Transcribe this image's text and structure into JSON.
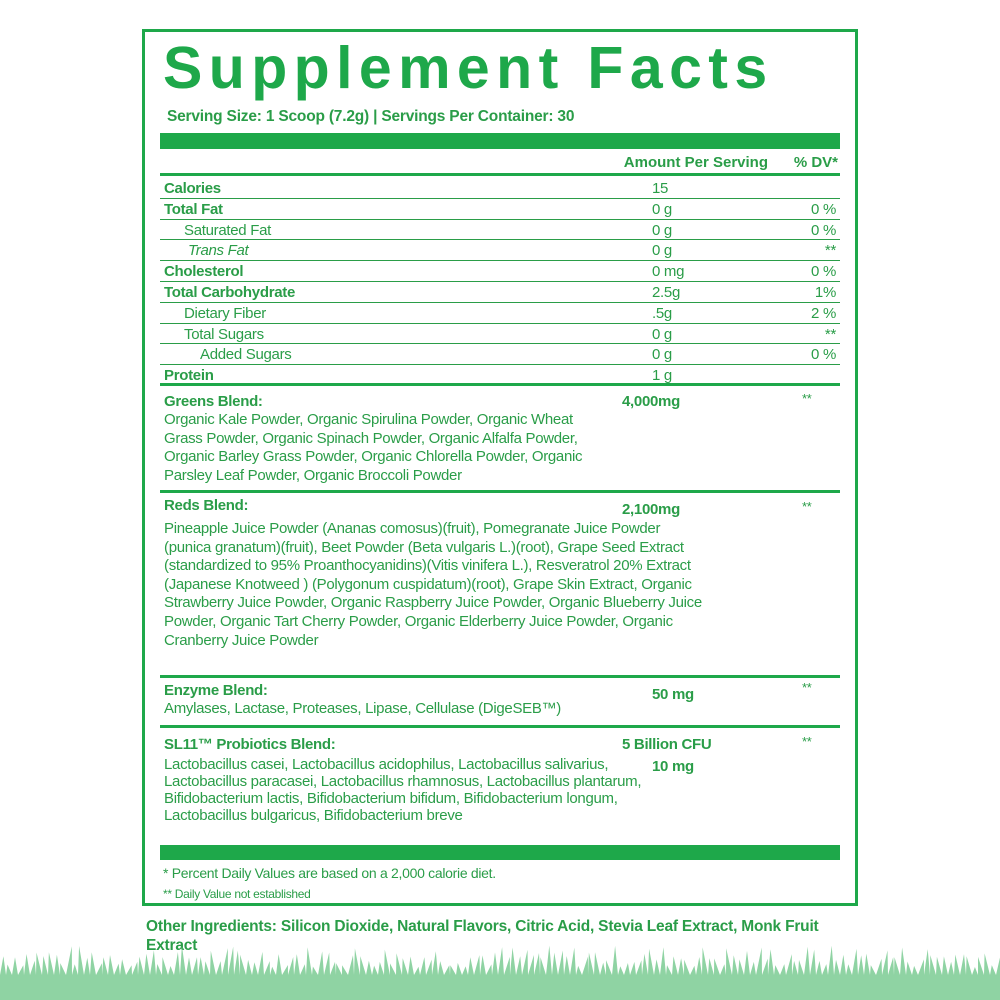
{
  "title": "Supplement Facts",
  "serving": "Serving Size: 1 Scoop (7.2g) | Servings Per Container: 30",
  "header": {
    "amount": "Amount Per Serving",
    "dv": "% DV*"
  },
  "nutrients": [
    {
      "name": "Calories",
      "amount": "15",
      "dv": ""
    },
    {
      "name": "Total Fat",
      "amount": "0 g",
      "dv": "0 %"
    },
    {
      "name": "Saturated Fat",
      "amount": "0 g",
      "dv": "0 %"
    },
    {
      "name": "Trans Fat",
      "amount": "0 g",
      "dv": "**"
    },
    {
      "name": "Cholesterol",
      "amount": "0 mg",
      "dv": "0 %"
    },
    {
      "name": "Total Carbohydrate",
      "amount": "2.5g",
      "dv": "1%"
    },
    {
      "name": "Dietary Fiber",
      "amount": ".5g",
      "dv": "2 %"
    },
    {
      "name": "Total Sugars",
      "amount": "0 g",
      "dv": "**"
    },
    {
      "name": "Added Sugars",
      "amount": "0 g",
      "dv": "0 %"
    },
    {
      "name": "Protein",
      "amount": "1 g",
      "dv": ""
    }
  ],
  "blends": [
    {
      "name": "Greens Blend:",
      "amount": "4,000mg",
      "dv": "**",
      "ingredients": "Organic Kale Powder, Organic Spirulina Powder, Organic Wheat Grass Powder, Organic Spinach Powder, Organic Alfalfa Powder, Organic Barley Grass Powder, Organic Chlorella Powder, Organic Parsley Leaf Powder, Organic Broccoli Powder"
    },
    {
      "name": "Reds Blend:",
      "amount": "2,100mg",
      "dv": "**",
      "ingredients": "Pineapple Juice Powder (Ananas comosus)(fruit), Pomegranate Juice Powder (punica granatum)(fruit), Beet Powder (Beta vulgaris L.)(root), Grape Seed Extract (standardized to 95% Proanthocyanidins)(Vitis vinifera L.), Resveratrol 20% Extract (Japanese Knotweed ) (Polygonum cuspidatum)(root), Grape Skin Extract, Organic Strawberry Juice Powder, Organic Raspberry Juice Powder, Organic Blueberry Juice Powder, Organic Tart Cherry Powder, Organic Elderberry Juice Powder, Organic Cranberry Juice Powder"
    },
    {
      "name": "Enzyme Blend:",
      "amount": "50 mg",
      "dv": "**",
      "ingredients": "Amylases, Lactase, Proteases, Lipase, Cellulase (DigeSEB™)"
    },
    {
      "name": "SL11™ Probiotics Blend:",
      "amount": "5 Billion CFU",
      "amount2": "10 mg",
      "dv": "**",
      "ingredients": "Lactobacillus casei, Lactobacillus acidophilus, Lactobacillus salivarius, Lactobacillus paracasei, Lactobacillus rhamnosus, Lactobacillus plantarum, Bifidobacterium lactis, Bifidobacterium bifidum, Bifidobacterium longum, Lactobacillus bulgaricus, Bifidobacterium breve"
    }
  ],
  "footnotes": [
    "* Percent Daily Values are based on a 2,000 calorie diet.",
    "** Daily Value not established"
  ],
  "other_ingredients": "Other Ingredients:  Silicon Dioxide, Natural Flavors, Citric Acid, Stevia Leaf Extract, Monk Fruit Extract",
  "colors": {
    "brand_green": "#1ea84a",
    "text_green": "#2a9d48",
    "grass": "#8fd3a3"
  }
}
